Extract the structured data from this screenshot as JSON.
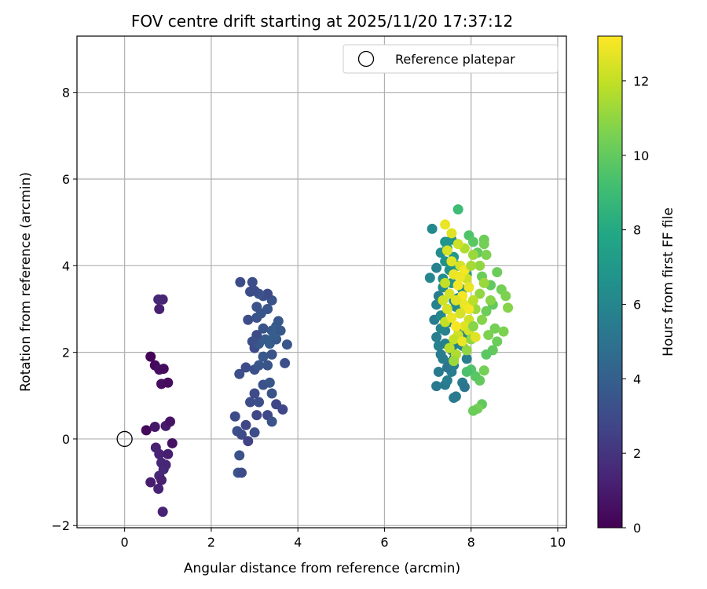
{
  "chart_data": {
    "type": "scatter",
    "title": "FOV centre drift starting at 2025/11/20 17:37:12",
    "xlabel": "Angular distance from reference (arcmin)",
    "ylabel": "Rotation from reference (arcmin)",
    "xlim": [
      -1.1,
      10.2
    ],
    "ylim": [
      -2.05,
      9.3
    ],
    "xticks": [
      0,
      2,
      4,
      6,
      8,
      10
    ],
    "yticks": [
      -2,
      0,
      2,
      4,
      6,
      8
    ],
    "grid": true,
    "legend": {
      "position": "top-right",
      "entries": [
        "Reference platepar"
      ]
    },
    "reference_point": {
      "x": 0,
      "y": 0
    },
    "colorbar": {
      "label": "Hours from first FF file",
      "colormap": "viridis",
      "range": [
        0,
        13.2
      ],
      "ticks": [
        0,
        2,
        4,
        6,
        8,
        10,
        12
      ]
    },
    "points": [
      {
        "x": 0.6,
        "y": 1.9,
        "c": 0.1
      },
      {
        "x": 0.7,
        "y": 1.7,
        "c": 0.3
      },
      {
        "x": 0.8,
        "y": 1.6,
        "c": 0.5
      },
      {
        "x": 0.9,
        "y": 1.62,
        "c": 0.4
      },
      {
        "x": 0.85,
        "y": 1.27,
        "c": 0.5
      },
      {
        "x": 1.0,
        "y": 1.3,
        "c": 0.4
      },
      {
        "x": 0.5,
        "y": 0.2,
        "c": 0.3
      },
      {
        "x": 0.7,
        "y": 0.28,
        "c": 0.8
      },
      {
        "x": 0.95,
        "y": 0.3,
        "c": 1.0
      },
      {
        "x": 1.05,
        "y": 0.4,
        "c": 0.7
      },
      {
        "x": 1.1,
        "y": -0.1,
        "c": 0.6
      },
      {
        "x": 0.72,
        "y": -0.2,
        "c": 1.2
      },
      {
        "x": 0.8,
        "y": -0.35,
        "c": 1.3
      },
      {
        "x": 1.0,
        "y": -0.35,
        "c": 1.1
      },
      {
        "x": 0.85,
        "y": -0.55,
        "c": 1.4
      },
      {
        "x": 0.95,
        "y": -0.6,
        "c": 1.4
      },
      {
        "x": 0.9,
        "y": -0.7,
        "c": 1.5
      },
      {
        "x": 0.8,
        "y": -0.85,
        "c": 1.5
      },
      {
        "x": 0.6,
        "y": -1.0,
        "c": 1.0
      },
      {
        "x": 0.85,
        "y": -0.95,
        "c": 1.2
      },
      {
        "x": 0.78,
        "y": -1.15,
        "c": 1.3
      },
      {
        "x": 0.88,
        "y": -1.68,
        "c": 1.3
      },
      {
        "x": 0.78,
        "y": 3.22,
        "c": 1.5
      },
      {
        "x": 0.88,
        "y": 3.22,
        "c": 1.4
      },
      {
        "x": 0.8,
        "y": 3.0,
        "c": 1.2
      },
      {
        "x": 2.55,
        "y": 0.52,
        "c": 3.0
      },
      {
        "x": 2.6,
        "y": 0.18,
        "c": 3.2
      },
      {
        "x": 2.7,
        "y": 0.1,
        "c": 3.0
      },
      {
        "x": 2.65,
        "y": -0.38,
        "c": 3.3
      },
      {
        "x": 2.62,
        "y": -0.78,
        "c": 3.5
      },
      {
        "x": 2.7,
        "y": -0.78,
        "c": 3.0
      },
      {
        "x": 2.85,
        "y": -0.05,
        "c": 2.6
      },
      {
        "x": 2.8,
        "y": 0.32,
        "c": 2.8
      },
      {
        "x": 3.0,
        "y": 0.15,
        "c": 3.1
      },
      {
        "x": 3.05,
        "y": 0.55,
        "c": 2.8
      },
      {
        "x": 3.1,
        "y": 0.85,
        "c": 3.2
      },
      {
        "x": 3.3,
        "y": 0.55,
        "c": 2.9
      },
      {
        "x": 3.4,
        "y": 0.4,
        "c": 3.3
      },
      {
        "x": 3.5,
        "y": 0.8,
        "c": 2.7
      },
      {
        "x": 3.65,
        "y": 0.68,
        "c": 2.8
      },
      {
        "x": 3.0,
        "y": 1.05,
        "c": 3.0
      },
      {
        "x": 3.2,
        "y": 1.25,
        "c": 3.3
      },
      {
        "x": 3.35,
        "y": 1.3,
        "c": 3.5
      },
      {
        "x": 3.4,
        "y": 1.05,
        "c": 3.4
      },
      {
        "x": 2.9,
        "y": 0.85,
        "c": 3.1
      },
      {
        "x": 2.65,
        "y": 1.5,
        "c": 3.2
      },
      {
        "x": 2.8,
        "y": 1.65,
        "c": 3.0
      },
      {
        "x": 3.0,
        "y": 1.6,
        "c": 3.2
      },
      {
        "x": 3.1,
        "y": 1.7,
        "c": 3.5
      },
      {
        "x": 3.3,
        "y": 1.7,
        "c": 3.4
      },
      {
        "x": 3.2,
        "y": 1.9,
        "c": 3.6
      },
      {
        "x": 3.4,
        "y": 1.95,
        "c": 3.3
      },
      {
        "x": 3.0,
        "y": 2.1,
        "c": 3.0
      },
      {
        "x": 3.1,
        "y": 2.2,
        "c": 3.6
      },
      {
        "x": 3.25,
        "y": 2.3,
        "c": 3.8
      },
      {
        "x": 3.35,
        "y": 2.2,
        "c": 3.8
      },
      {
        "x": 3.4,
        "y": 2.5,
        "c": 3.7
      },
      {
        "x": 3.5,
        "y": 2.6,
        "c": 3.9
      },
      {
        "x": 3.55,
        "y": 2.72,
        "c": 3.6
      },
      {
        "x": 3.2,
        "y": 2.55,
        "c": 3.4
      },
      {
        "x": 3.05,
        "y": 2.4,
        "c": 3.0
      },
      {
        "x": 2.95,
        "y": 2.25,
        "c": 3.2
      },
      {
        "x": 3.75,
        "y": 2.18,
        "c": 3.5
      },
      {
        "x": 3.7,
        "y": 1.75,
        "c": 3.2
      },
      {
        "x": 3.5,
        "y": 2.3,
        "c": 3.6
      },
      {
        "x": 2.85,
        "y": 2.75,
        "c": 3.1
      },
      {
        "x": 3.05,
        "y": 2.8,
        "c": 3.3
      },
      {
        "x": 3.15,
        "y": 2.9,
        "c": 3.5
      },
      {
        "x": 3.3,
        "y": 3.0,
        "c": 3.5
      },
      {
        "x": 3.4,
        "y": 3.2,
        "c": 3.4
      },
      {
        "x": 3.2,
        "y": 3.3,
        "c": 3.2
      },
      {
        "x": 3.3,
        "y": 3.35,
        "c": 3.0
      },
      {
        "x": 3.1,
        "y": 3.35,
        "c": 3.3
      },
      {
        "x": 2.9,
        "y": 3.4,
        "c": 3.0
      },
      {
        "x": 3.0,
        "y": 3.42,
        "c": 3.1
      },
      {
        "x": 2.67,
        "y": 3.62,
        "c": 3.0
      },
      {
        "x": 2.95,
        "y": 3.62,
        "c": 3.1
      },
      {
        "x": 3.05,
        "y": 3.05,
        "c": 3.3
      },
      {
        "x": 3.45,
        "y": 2.4,
        "c": 3.9
      },
      {
        "x": 3.6,
        "y": 2.5,
        "c": 3.6
      },
      {
        "x": 7.05,
        "y": 3.72,
        "c": 6.0
      },
      {
        "x": 7.1,
        "y": 4.85,
        "c": 6.2
      },
      {
        "x": 7.2,
        "y": 3.95,
        "c": 5.8
      },
      {
        "x": 7.25,
        "y": 3.3,
        "c": 5.6
      },
      {
        "x": 7.2,
        "y": 3.1,
        "c": 5.8
      },
      {
        "x": 7.15,
        "y": 2.75,
        "c": 5.5
      },
      {
        "x": 7.2,
        "y": 2.35,
        "c": 5.6
      },
      {
        "x": 7.25,
        "y": 2.15,
        "c": 5.8
      },
      {
        "x": 7.3,
        "y": 1.95,
        "c": 5.6
      },
      {
        "x": 7.2,
        "y": 1.22,
        "c": 5.4
      },
      {
        "x": 7.4,
        "y": 1.25,
        "c": 5.4
      },
      {
        "x": 7.45,
        "y": 1.35,
        "c": 5.6
      },
      {
        "x": 7.6,
        "y": 0.95,
        "c": 5.5
      },
      {
        "x": 7.65,
        "y": 0.98,
        "c": 5.4
      },
      {
        "x": 7.3,
        "y": 2.85,
        "c": 6.0
      },
      {
        "x": 7.35,
        "y": 3.5,
        "c": 6.2
      },
      {
        "x": 7.3,
        "y": 4.3,
        "c": 6.4
      },
      {
        "x": 7.4,
        "y": 4.1,
        "c": 6.6
      },
      {
        "x": 7.4,
        "y": 4.55,
        "c": 6.8
      },
      {
        "x": 7.45,
        "y": 4.4,
        "c": 7.0
      },
      {
        "x": 7.5,
        "y": 3.9,
        "c": 6.6
      },
      {
        "x": 7.55,
        "y": 3.6,
        "c": 6.8
      },
      {
        "x": 7.45,
        "y": 3.0,
        "c": 6.2
      },
      {
        "x": 7.5,
        "y": 2.7,
        "c": 6.0
      },
      {
        "x": 7.4,
        "y": 2.5,
        "c": 5.8
      },
      {
        "x": 7.5,
        "y": 1.75,
        "c": 5.4
      },
      {
        "x": 7.55,
        "y": 1.55,
        "c": 5.6
      },
      {
        "x": 7.6,
        "y": 1.85,
        "c": 5.6
      },
      {
        "x": 7.65,
        "y": 2.2,
        "c": 5.8
      },
      {
        "x": 7.7,
        "y": 2.55,
        "c": 6.0
      },
      {
        "x": 7.75,
        "y": 2.9,
        "c": 6.2
      },
      {
        "x": 7.7,
        "y": 3.25,
        "c": 6.4
      },
      {
        "x": 7.8,
        "y": 3.45,
        "c": 6.6
      },
      {
        "x": 7.55,
        "y": 2.05,
        "c": 5.5
      },
      {
        "x": 7.45,
        "y": 1.65,
        "c": 5.2
      },
      {
        "x": 7.8,
        "y": 1.3,
        "c": 5.4
      },
      {
        "x": 7.85,
        "y": 1.2,
        "c": 5.2
      },
      {
        "x": 7.6,
        "y": 1.7,
        "c": 5.6
      },
      {
        "x": 7.35,
        "y": 1.85,
        "c": 5.5
      },
      {
        "x": 7.25,
        "y": 1.55,
        "c": 5.4
      },
      {
        "x": 7.55,
        "y": 4.6,
        "c": 6.8
      },
      {
        "x": 7.6,
        "y": 4.2,
        "c": 7.0
      },
      {
        "x": 7.7,
        "y": 4.0,
        "c": 7.2
      },
      {
        "x": 7.9,
        "y": 3.8,
        "c": 7.4
      },
      {
        "x": 7.3,
        "y": 2.55,
        "c": 5.9
      },
      {
        "x": 7.85,
        "y": 2.4,
        "c": 6.0
      },
      {
        "x": 7.8,
        "y": 2.15,
        "c": 5.8
      },
      {
        "x": 7.9,
        "y": 1.85,
        "c": 5.6
      },
      {
        "x": 7.6,
        "y": 3.2,
        "c": 6.5
      },
      {
        "x": 7.65,
        "y": 3.05,
        "c": 6.3
      },
      {
        "x": 7.4,
        "y": 2.2,
        "c": 5.7
      },
      {
        "x": 7.35,
        "y": 3.7,
        "c": 6.4
      },
      {
        "x": 7.7,
        "y": 5.3,
        "c": 9.0
      },
      {
        "x": 7.95,
        "y": 4.7,
        "c": 9.5
      },
      {
        "x": 8.05,
        "y": 4.55,
        "c": 9.8
      },
      {
        "x": 8.15,
        "y": 4.3,
        "c": 10.0
      },
      {
        "x": 8.3,
        "y": 4.6,
        "c": 10.2
      },
      {
        "x": 8.3,
        "y": 4.5,
        "c": 10.4
      },
      {
        "x": 8.35,
        "y": 4.25,
        "c": 10.6
      },
      {
        "x": 8.25,
        "y": 3.75,
        "c": 10.2
      },
      {
        "x": 8.45,
        "y": 3.55,
        "c": 10.0
      },
      {
        "x": 8.6,
        "y": 3.85,
        "c": 10.2
      },
      {
        "x": 8.7,
        "y": 3.45,
        "c": 10.4
      },
      {
        "x": 8.8,
        "y": 3.3,
        "c": 10.6
      },
      {
        "x": 8.85,
        "y": 3.03,
        "c": 10.8
      },
      {
        "x": 8.5,
        "y": 3.1,
        "c": 10.0
      },
      {
        "x": 8.35,
        "y": 2.95,
        "c": 10.2
      },
      {
        "x": 8.55,
        "y": 2.55,
        "c": 10.4
      },
      {
        "x": 8.75,
        "y": 2.48,
        "c": 10.6
      },
      {
        "x": 8.6,
        "y": 2.25,
        "c": 10.2
      },
      {
        "x": 8.5,
        "y": 2.05,
        "c": 10.0
      },
      {
        "x": 8.35,
        "y": 1.95,
        "c": 9.8
      },
      {
        "x": 8.3,
        "y": 1.58,
        "c": 10.4
      },
      {
        "x": 8.2,
        "y": 1.35,
        "c": 10.0
      },
      {
        "x": 8.1,
        "y": 1.45,
        "c": 9.8
      },
      {
        "x": 8.0,
        "y": 1.6,
        "c": 9.6
      },
      {
        "x": 7.9,
        "y": 1.55,
        "c": 9.4
      },
      {
        "x": 8.25,
        "y": 0.8,
        "c": 10.0
      },
      {
        "x": 8.15,
        "y": 0.7,
        "c": 10.4
      },
      {
        "x": 8.05,
        "y": 0.65,
        "c": 10.2
      },
      {
        "x": 8.4,
        "y": 2.4,
        "c": 10.6
      },
      {
        "x": 8.25,
        "y": 2.75,
        "c": 10.8
      },
      {
        "x": 8.2,
        "y": 3.35,
        "c": 11.0
      },
      {
        "x": 8.45,
        "y": 3.2,
        "c": 10.8
      },
      {
        "x": 8.1,
        "y": 3.0,
        "c": 11.2
      },
      {
        "x": 8.3,
        "y": 3.6,
        "c": 11.2
      },
      {
        "x": 8.2,
        "y": 4.0,
        "c": 11.0
      },
      {
        "x": 8.05,
        "y": 4.25,
        "c": 11.2
      },
      {
        "x": 7.85,
        "y": 4.4,
        "c": 11.6
      },
      {
        "x": 7.7,
        "y": 4.5,
        "c": 12.2
      },
      {
        "x": 7.55,
        "y": 4.75,
        "c": 12.6
      },
      {
        "x": 7.4,
        "y": 4.95,
        "c": 12.8
      },
      {
        "x": 7.55,
        "y": 4.1,
        "c": 12.6
      },
      {
        "x": 7.75,
        "y": 4.0,
        "c": 12.4
      },
      {
        "x": 7.9,
        "y": 3.7,
        "c": 12.2
      },
      {
        "x": 7.6,
        "y": 3.8,
        "c": 12.8
      },
      {
        "x": 7.7,
        "y": 3.55,
        "c": 13.0
      },
      {
        "x": 7.8,
        "y": 3.3,
        "c": 13.0
      },
      {
        "x": 7.65,
        "y": 3.2,
        "c": 12.6
      },
      {
        "x": 7.85,
        "y": 3.1,
        "c": 12.8
      },
      {
        "x": 7.95,
        "y": 3.0,
        "c": 13.0
      },
      {
        "x": 7.75,
        "y": 2.9,
        "c": 12.4
      },
      {
        "x": 7.95,
        "y": 2.75,
        "c": 12.2
      },
      {
        "x": 7.85,
        "y": 2.6,
        "c": 12.6
      },
      {
        "x": 7.95,
        "y": 2.5,
        "c": 12.4
      },
      {
        "x": 7.7,
        "y": 2.4,
        "c": 12.2
      },
      {
        "x": 7.6,
        "y": 2.3,
        "c": 12.0
      },
      {
        "x": 7.5,
        "y": 2.1,
        "c": 11.8
      },
      {
        "x": 7.65,
        "y": 1.95,
        "c": 11.6
      },
      {
        "x": 7.8,
        "y": 2.25,
        "c": 12.8
      },
      {
        "x": 7.4,
        "y": 2.7,
        "c": 12.0
      },
      {
        "x": 7.45,
        "y": 3.0,
        "c": 12.4
      },
      {
        "x": 7.55,
        "y": 2.8,
        "c": 12.8
      },
      {
        "x": 7.5,
        "y": 3.35,
        "c": 12.4
      },
      {
        "x": 7.4,
        "y": 3.6,
        "c": 12.0
      },
      {
        "x": 7.85,
        "y": 3.9,
        "c": 13.0
      },
      {
        "x": 7.95,
        "y": 3.5,
        "c": 12.8
      },
      {
        "x": 8.0,
        "y": 4.0,
        "c": 11.4
      },
      {
        "x": 7.45,
        "y": 4.35,
        "c": 12.4
      },
      {
        "x": 8.0,
        "y": 2.3,
        "c": 11.0
      },
      {
        "x": 8.1,
        "y": 2.35,
        "c": 12.6
      },
      {
        "x": 8.05,
        "y": 2.6,
        "c": 10.8
      },
      {
        "x": 7.9,
        "y": 2.05,
        "c": 11.0
      },
      {
        "x": 7.35,
        "y": 3.2,
        "c": 12.2
      },
      {
        "x": 7.6,
        "y": 1.8,
        "c": 11.2
      },
      {
        "x": 8.05,
        "y": 3.2,
        "c": 11.8
      },
      {
        "x": 7.75,
        "y": 3.75,
        "c": 12.9
      },
      {
        "x": 7.65,
        "y": 2.6,
        "c": 13.1
      }
    ]
  }
}
